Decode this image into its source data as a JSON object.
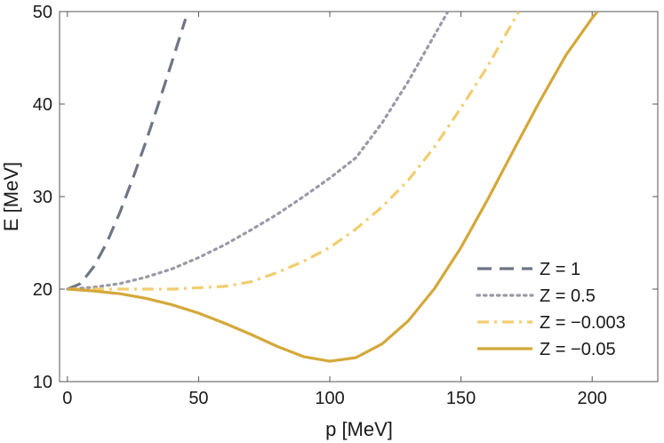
{
  "chart_data": {
    "type": "line",
    "title": "",
    "xlabel": "p [MeV]",
    "ylabel": "E [MeV]",
    "xlim": [
      -3,
      225
    ],
    "ylim": [
      10,
      50
    ],
    "xticks": [
      0,
      50,
      100,
      150,
      200
    ],
    "yticks": [
      10,
      20,
      30,
      40,
      50
    ],
    "grid": false,
    "legend_position": "bottom-right",
    "series": [
      {
        "name": "Z = 1",
        "color": "#6f7585",
        "dash": "dashed",
        "x": [
          0,
          5,
          10,
          15,
          20,
          25,
          30,
          35,
          40,
          45
        ],
        "y": [
          20.0,
          20.6,
          22.4,
          25.0,
          28.3,
          32.0,
          36.0,
          40.3,
          44.7,
          49.2
        ]
      },
      {
        "name": "Z = 0.5",
        "color": "#9a9aa6",
        "dash": "dotted",
        "x": [
          0,
          10,
          20,
          30,
          40,
          50,
          60,
          70,
          80,
          90,
          100,
          110,
          120,
          130,
          140,
          145
        ],
        "y": [
          20.0,
          20.2,
          20.6,
          21.3,
          22.2,
          23.4,
          24.8,
          26.4,
          28.1,
          30.0,
          32.0,
          34.2,
          38.0,
          42.5,
          47.5,
          50.0
        ]
      },
      {
        "name": "Z = −0.003",
        "color": "#f1cd6e",
        "dash": "dashdot",
        "x": [
          0,
          20,
          40,
          60,
          70,
          80,
          90,
          100,
          110,
          120,
          130,
          140,
          150,
          160,
          170,
          172
        ],
        "y": [
          20.0,
          20.0,
          20.0,
          20.3,
          20.8,
          21.8,
          23.0,
          24.5,
          26.5,
          28.9,
          31.8,
          35.4,
          39.6,
          44.0,
          49.0,
          50.0
        ]
      },
      {
        "name": "Z = −0.05",
        "color": "#d4a83a",
        "dash": "solid",
        "x": [
          0,
          10,
          20,
          30,
          40,
          50,
          60,
          70,
          80,
          90,
          100,
          110,
          120,
          130,
          140,
          150,
          160,
          170,
          180,
          190,
          200,
          202
        ],
        "y": [
          20.0,
          19.8,
          19.5,
          19.0,
          18.3,
          17.4,
          16.3,
          15.1,
          13.8,
          12.7,
          12.2,
          12.6,
          14.1,
          16.6,
          20.1,
          24.5,
          29.6,
          35.0,
          40.3,
          45.3,
          49.3,
          50.0
        ]
      }
    ]
  }
}
